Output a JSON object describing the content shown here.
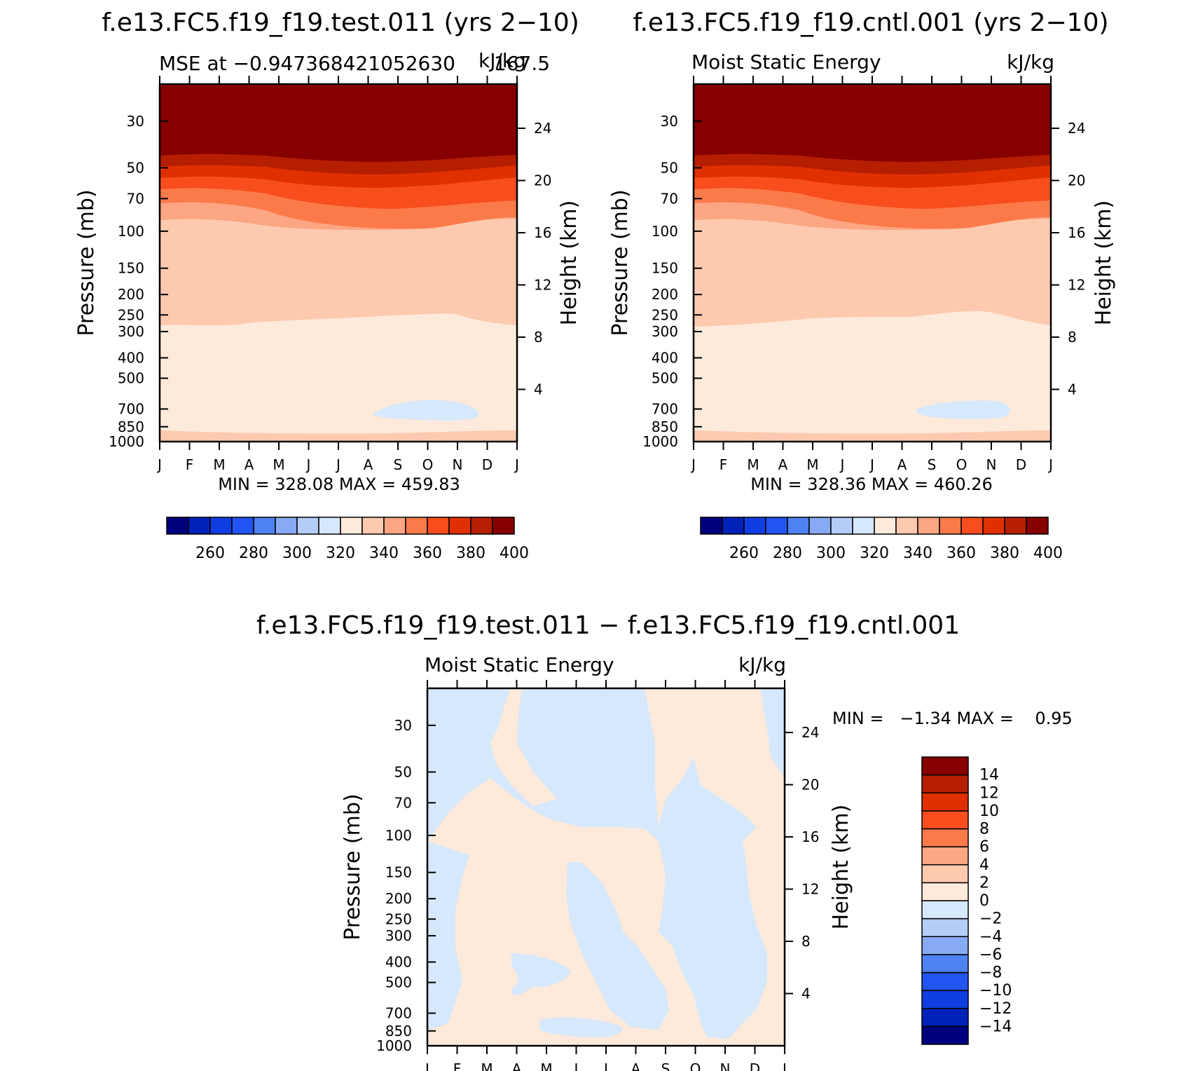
{
  "months": [
    "J",
    "F",
    "M",
    "A",
    "M",
    "J",
    "J",
    "A",
    "S",
    "O",
    "N",
    "D",
    "J"
  ],
  "pressure_ticks": [
    30,
    50,
    70,
    100,
    150,
    200,
    250,
    300,
    400,
    500,
    700,
    850,
    1000
  ],
  "height_ticks": [
    4,
    8,
    12,
    16,
    20,
    24
  ],
  "chart_data": [
    {
      "type": "heatmap",
      "title": "f.e13.FC5.f19_f19.test.011 (yrs 2−10)",
      "subtitle_left": "MSE at −0.947368421052630",
      "subtitle_right": "kJ/kg",
      "subtitle_overlap": "167.5",
      "xlabel": "",
      "ylabel": "Pressure (mb)",
      "y2label": "Height (km)",
      "stats": "MIN = 328.08 MAX = 459.83",
      "contour_levels": [
        250,
        260,
        270,
        280,
        290,
        300,
        310,
        320,
        330,
        340,
        350,
        360,
        370,
        380,
        390,
        400
      ],
      "colorbar_labels": [
        "260",
        "280",
        "300",
        "320",
        "340",
        "360",
        "380",
        "400"
      ],
      "min": 328.08,
      "max": 459.83
    },
    {
      "type": "heatmap",
      "title": "f.e13.FC5.f19_f19.cntl.001 (yrs 2−10)",
      "subtitle_left": "Moist Static Energy",
      "subtitle_right": "kJ/kg",
      "xlabel": "",
      "ylabel": "Pressure (mb)",
      "y2label": "Height (km)",
      "stats": "MIN = 328.36 MAX = 460.26",
      "contour_levels": [
        250,
        260,
        270,
        280,
        290,
        300,
        310,
        320,
        330,
        340,
        350,
        360,
        370,
        380,
        390,
        400
      ],
      "colorbar_labels": [
        "260",
        "280",
        "300",
        "320",
        "340",
        "360",
        "380",
        "400"
      ],
      "min": 328.36,
      "max": 460.26
    },
    {
      "type": "heatmap",
      "title": "f.e13.FC5.f19_f19.test.011 − f.e13.FC5.f19_f19.cntl.001",
      "subtitle_left": "Moist Static Energy",
      "subtitle_right": "kJ/kg",
      "xlabel": "",
      "ylabel": "Pressure (mb)",
      "y2label": "Height (km)",
      "stats": "MIN =   −1.34 MAX =    0.95",
      "contour_levels": [
        -14,
        -12,
        -10,
        -8,
        -6,
        -4,
        -2,
        0,
        2,
        4,
        6,
        8,
        10,
        12,
        14
      ],
      "colorbar_labels": [
        "14",
        "12",
        "10",
        "8",
        "6",
        "4",
        "2",
        "0",
        "−2",
        "−4",
        "−6",
        "−8",
        "−10",
        "−12",
        "−14"
      ],
      "min": -1.34,
      "max": 0.95
    }
  ],
  "colors": {
    "mse_scale": [
      "#00007f",
      "#0022b8",
      "#0f3fe0",
      "#2255f2",
      "#4d82f0",
      "#88aaf5",
      "#b3cdf7",
      "#d6e8fb",
      "#fdeadb",
      "#fdcab0",
      "#fca683",
      "#fb7a4a",
      "#f84d1c",
      "#e03000",
      "#b61e00",
      "#870000"
    ],
    "diff_scale": [
      "#00007f",
      "#0022b8",
      "#0f3fe0",
      "#2255f2",
      "#4d82f0",
      "#88aaf5",
      "#b3cdf7",
      "#d6e8fb",
      "#fdeadb",
      "#fdcab0",
      "#fca683",
      "#fb7a4a",
      "#f84d1c",
      "#e03000",
      "#b61e00",
      "#870000"
    ]
  }
}
